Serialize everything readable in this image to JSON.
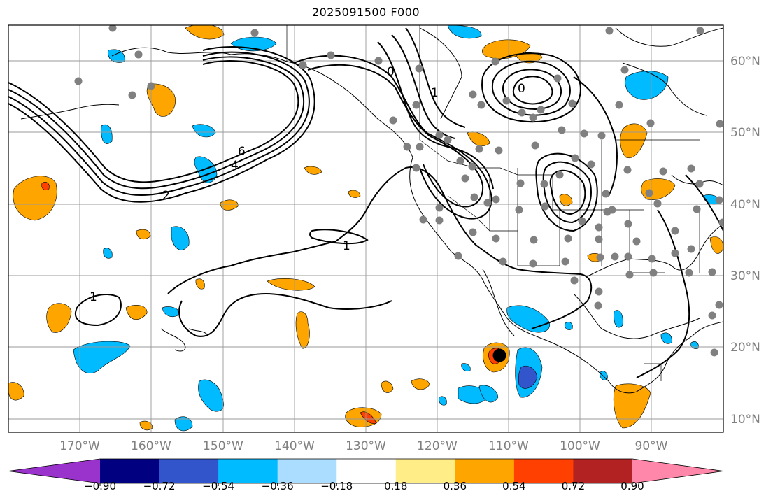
{
  "title": "2025091500 F000",
  "map": {
    "lat_labels": [
      "60°N",
      "50°N",
      "40°N",
      "30°N",
      "20°N",
      "10°N"
    ],
    "lon_labels": [
      "170°W",
      "160°W",
      "150°W",
      "140°W",
      "130°W",
      "120°W",
      "110°W",
      "100°W",
      "90°W"
    ],
    "contour_labels": [
      "2",
      "4",
      "6",
      "1",
      "1",
      "1",
      "0",
      "0"
    ]
  },
  "colorbar": {
    "colors": [
      "#9933cc",
      "#000080",
      "#3355cc",
      "#00bbff",
      "#aaddff",
      "#ffffff",
      "#ffee88",
      "#ffa500",
      "#ff4000",
      "#b22222",
      "#ff88aa"
    ],
    "tick_labels": [
      "−0.90",
      "−0.72",
      "−0.54",
      "−0.36",
      "−0.18",
      "0.18",
      "0.36",
      "0.54",
      "0.72",
      "0.90"
    ]
  }
}
